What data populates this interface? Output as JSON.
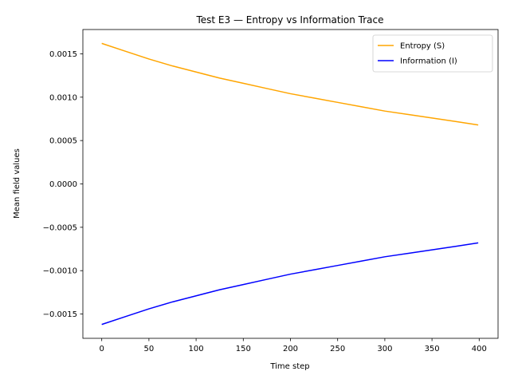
{
  "chart_data": {
    "type": "line",
    "title": "Test E3 — Entropy vs Information Trace",
    "xlabel": "Time step",
    "ylabel": "Mean field values",
    "xlim": [
      -20,
      420
    ],
    "ylim": [
      -0.00178,
      0.00178
    ],
    "xticks": [
      0,
      50,
      100,
      150,
      200,
      250,
      300,
      350,
      400
    ],
    "yticks": [
      -0.0015,
      -0.001,
      -0.0005,
      0.0,
      0.0005,
      0.001,
      0.0015
    ],
    "ytick_labels": [
      "−0.0015",
      "−0.0010",
      "−0.0005",
      "0.0000",
      "0.0005",
      "0.0010",
      "0.0015"
    ],
    "legend_position": "upper right",
    "grid": false,
    "series": [
      {
        "name": "Entropy (S)",
        "color": "#ffa500",
        "x": [
          0,
          25,
          50,
          75,
          100,
          125,
          150,
          175,
          200,
          225,
          250,
          275,
          300,
          325,
          350,
          375,
          399
        ],
        "y": [
          0.00162,
          0.00153,
          0.00144,
          0.00136,
          0.00129,
          0.00122,
          0.00116,
          0.0011,
          0.00104,
          0.00099,
          0.00094,
          0.00089,
          0.00084,
          0.0008,
          0.00076,
          0.00072,
          0.00068
        ]
      },
      {
        "name": "Information (I)",
        "color": "#0000ff",
        "x": [
          0,
          25,
          50,
          75,
          100,
          125,
          150,
          175,
          200,
          225,
          250,
          275,
          300,
          325,
          350,
          375,
          399
        ],
        "y": [
          -0.00162,
          -0.00153,
          -0.00144,
          -0.00136,
          -0.00129,
          -0.00122,
          -0.00116,
          -0.0011,
          -0.00104,
          -0.00099,
          -0.00094,
          -0.00089,
          -0.00084,
          -0.0008,
          -0.00076,
          -0.00072,
          -0.00068
        ]
      }
    ]
  }
}
